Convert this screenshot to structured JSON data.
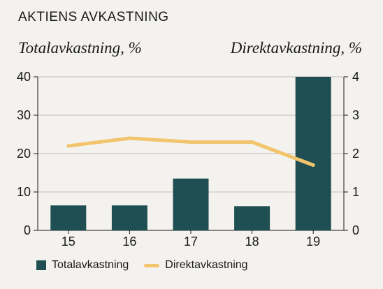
{
  "title": "AKTIENS AVKASTNING",
  "colors": {
    "bar": "#1f4f52",
    "line": "#f2c46c",
    "axis": "#1a1a1a"
  },
  "chart_data": {
    "type": "bar",
    "title": "AKTIENS AVKASTNING",
    "ylabel": "Totalavkastning, %",
    "y2label": "Direktavkastning, %",
    "categories": [
      "15",
      "16",
      "17",
      "18",
      "19"
    ],
    "ylim": [
      0,
      40
    ],
    "y2lim": [
      0,
      4
    ],
    "yticks": [
      "0",
      "10",
      "20",
      "30",
      "40"
    ],
    "y2ticks": [
      "0",
      "1",
      "2",
      "3",
      "4"
    ],
    "series": [
      {
        "name": "Totalavkastning",
        "type": "bar",
        "axis": "left",
        "values": [
          6.5,
          6.5,
          13.5,
          6.3,
          40
        ]
      },
      {
        "name": "Direktavkastning",
        "type": "line",
        "axis": "right",
        "values": [
          2.2,
          2.4,
          2.3,
          2.3,
          1.7
        ]
      }
    ],
    "grid": true,
    "legend": "bottom-left"
  }
}
